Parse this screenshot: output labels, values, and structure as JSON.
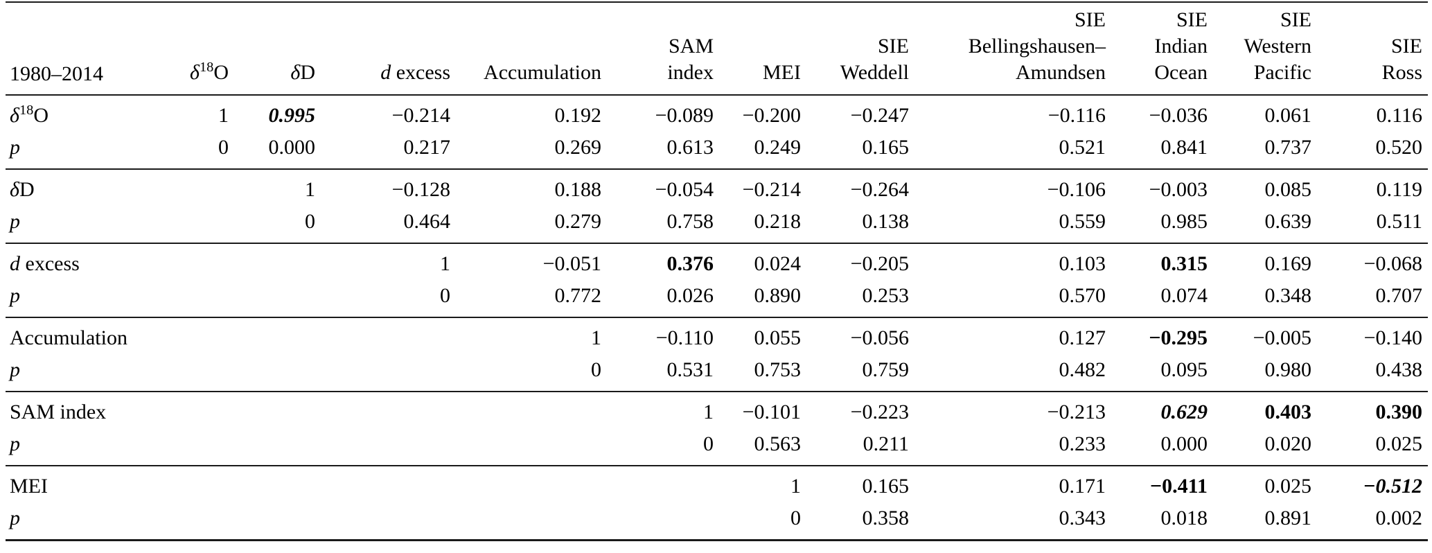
{
  "colors": {
    "text": "#000000",
    "background": "#ffffff",
    "rule": "#1a1a1a"
  },
  "table": {
    "period_label": "1980–2014",
    "row_sublabel": [
      {
        "t": "p",
        "s": "i"
      }
    ],
    "columns": [
      {
        "name": "d18O",
        "lines": [
          [
            {
              "t": "δ",
              "s": "i"
            },
            {
              "t": "18",
              "s": "sup"
            },
            {
              "t": "O",
              "s": "n"
            }
          ]
        ]
      },
      {
        "name": "dD",
        "lines": [
          [
            {
              "t": "δ",
              "s": "i"
            },
            {
              "t": "D",
              "s": "n"
            }
          ]
        ]
      },
      {
        "name": "d-excess",
        "lines": [
          [
            {
              "t": "d",
              "s": "i"
            },
            {
              "t": " excess",
              "s": "n"
            }
          ]
        ]
      },
      {
        "name": "accumulation",
        "lines": [
          "Accumulation"
        ]
      },
      {
        "name": "sam-index",
        "lines": [
          "SAM",
          "index"
        ]
      },
      {
        "name": "mei",
        "lines": [
          "MEI"
        ]
      },
      {
        "name": "sie-weddell",
        "lines": [
          "SIE",
          "Weddell"
        ]
      },
      {
        "name": "sie-bellingshausen-amundsen",
        "lines": [
          "SIE",
          "Bellingshausen–",
          "Amundsen"
        ]
      },
      {
        "name": "sie-indian-ocean",
        "lines": [
          "SIE",
          "Indian",
          "Ocean"
        ]
      },
      {
        "name": "sie-western-pacific",
        "lines": [
          "SIE",
          "Western",
          "Pacific"
        ]
      },
      {
        "name": "sie-ross",
        "lines": [
          "SIE",
          "Ross"
        ]
      }
    ],
    "groups": [
      {
        "name": "d18O",
        "label": [
          {
            "t": "δ",
            "s": "i"
          },
          {
            "t": "18",
            "s": "sup"
          },
          {
            "t": "O",
            "s": "n"
          }
        ],
        "r": [
          "1",
          "0.995",
          "−0.214",
          "0.192",
          "−0.089",
          "−0.200",
          "−0.247",
          "−0.116",
          "−0.036",
          "0.061",
          "0.116"
        ],
        "r_styles": {
          "1": "bi"
        },
        "p": [
          "0",
          "0.000",
          "0.217",
          "0.269",
          "0.613",
          "0.249",
          "0.165",
          "0.521",
          "0.841",
          "0.737",
          "0.520"
        ]
      },
      {
        "name": "dD",
        "label": [
          {
            "t": "δ",
            "s": "i"
          },
          {
            "t": "D",
            "s": "n"
          }
        ],
        "r": [
          "",
          "1",
          "−0.128",
          "0.188",
          "−0.054",
          "−0.214",
          "−0.264",
          "−0.106",
          "−0.003",
          "0.085",
          "0.119"
        ],
        "r_styles": {},
        "p": [
          "",
          "0",
          "0.464",
          "0.279",
          "0.758",
          "0.218",
          "0.138",
          "0.559",
          "0.985",
          "0.639",
          "0.511"
        ]
      },
      {
        "name": "d-excess",
        "label": [
          {
            "t": "d",
            "s": "i"
          },
          {
            "t": " excess",
            "s": "n"
          }
        ],
        "r": [
          "",
          "",
          "1",
          "−0.051",
          "0.376",
          "0.024",
          "−0.205",
          "0.103",
          "0.315",
          "0.169",
          "−0.068"
        ],
        "r_styles": {
          "4": "b",
          "8": "b"
        },
        "p": [
          "",
          "",
          "0",
          "0.772",
          "0.026",
          "0.890",
          "0.253",
          "0.570",
          "0.074",
          "0.348",
          "0.707"
        ]
      },
      {
        "name": "accumulation",
        "label": [
          {
            "t": "Accumulation",
            "s": "n"
          }
        ],
        "r": [
          "",
          "",
          "",
          "1",
          "−0.110",
          "0.055",
          "−0.056",
          "0.127",
          "−0.295",
          "−0.005",
          "−0.140"
        ],
        "r_styles": {
          "8": "b"
        },
        "p": [
          "",
          "",
          "",
          "0",
          "0.531",
          "0.753",
          "0.759",
          "0.482",
          "0.095",
          "0.980",
          "0.438"
        ]
      },
      {
        "name": "sam-index",
        "label": [
          {
            "t": "SAM index",
            "s": "n"
          }
        ],
        "r": [
          "",
          "",
          "",
          "",
          "1",
          "−0.101",
          "−0.223",
          "−0.213",
          "0.629",
          "0.403",
          "0.390"
        ],
        "r_styles": {
          "8": "bi",
          "9": "b",
          "10": "b"
        },
        "p": [
          "",
          "",
          "",
          "",
          "0",
          "0.563",
          "0.211",
          "0.233",
          "0.000",
          "0.020",
          "0.025"
        ]
      },
      {
        "name": "mei",
        "label": [
          {
            "t": "MEI",
            "s": "n"
          }
        ],
        "r": [
          "",
          "",
          "",
          "",
          "",
          "1",
          "0.165",
          "0.171",
          "−0.411",
          "0.025",
          "−0.512"
        ],
        "r_styles": {
          "8": "b",
          "10": "bi"
        },
        "p": [
          "",
          "",
          "",
          "",
          "",
          "0",
          "0.358",
          "0.343",
          "0.018",
          "0.891",
          "0.002"
        ]
      }
    ]
  }
}
